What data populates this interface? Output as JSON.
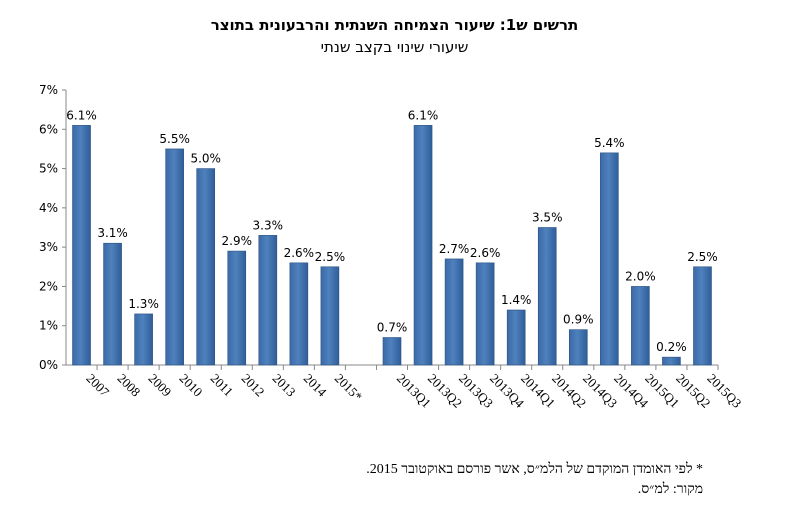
{
  "title": "תרשים ש1: שיעור הצמיחה השנתית והרבעונית בתוצר",
  "subtitle": "שיעורי שינוי בקצב שנתי",
  "footnote": "* לפי האומדן המוקדם של הלמ״ס, אשר פורסם באוקטובר 2015.",
  "source": "מקור: למ״ס.",
  "bar_color": "#4F81BD",
  "chart_data": {
    "type": "bar",
    "title": "תרשים ש1: שיעור הצמיחה השנתית והרבעונית בתוצר",
    "subtitle": "שיעורי שינוי בקצב שנתי",
    "ylim": [
      0,
      7
    ],
    "y_ticks": [
      "0%",
      "1%",
      "2%",
      "3%",
      "4%",
      "5%",
      "6%",
      "7%"
    ],
    "grid": false,
    "legend": "none",
    "groups": [
      {
        "categories": [
          "2007",
          "2008",
          "2009",
          "2010",
          "2011",
          "2012",
          "2013",
          "2014",
          "2015*"
        ],
        "values": [
          6.1,
          3.1,
          1.3,
          5.5,
          5.0,
          2.9,
          3.3,
          2.6,
          2.5
        ],
        "labels": [
          "6.1%",
          "3.1%",
          "1.3%",
          "5.5%",
          "5.0%",
          "2.9%",
          "3.3%",
          "2.6%",
          "2.5%"
        ]
      },
      {
        "categories": [
          "2013Q1",
          "2013Q2",
          "2013Q3",
          "2013Q4",
          "2014Q1",
          "2014Q2",
          "2014Q3",
          "2014Q4",
          "2015Q1",
          "2015Q2",
          "2015Q3"
        ],
        "values": [
          0.7,
          6.1,
          2.7,
          2.6,
          1.4,
          3.5,
          0.9,
          5.4,
          2.0,
          0.2,
          2.5
        ],
        "labels": [
          "0.7%",
          "6.1%",
          "2.7%",
          "2.6%",
          "1.4%",
          "3.5%",
          "0.9%",
          "5.4%",
          "2.0%",
          "0.2%",
          "2.5%"
        ]
      }
    ]
  }
}
